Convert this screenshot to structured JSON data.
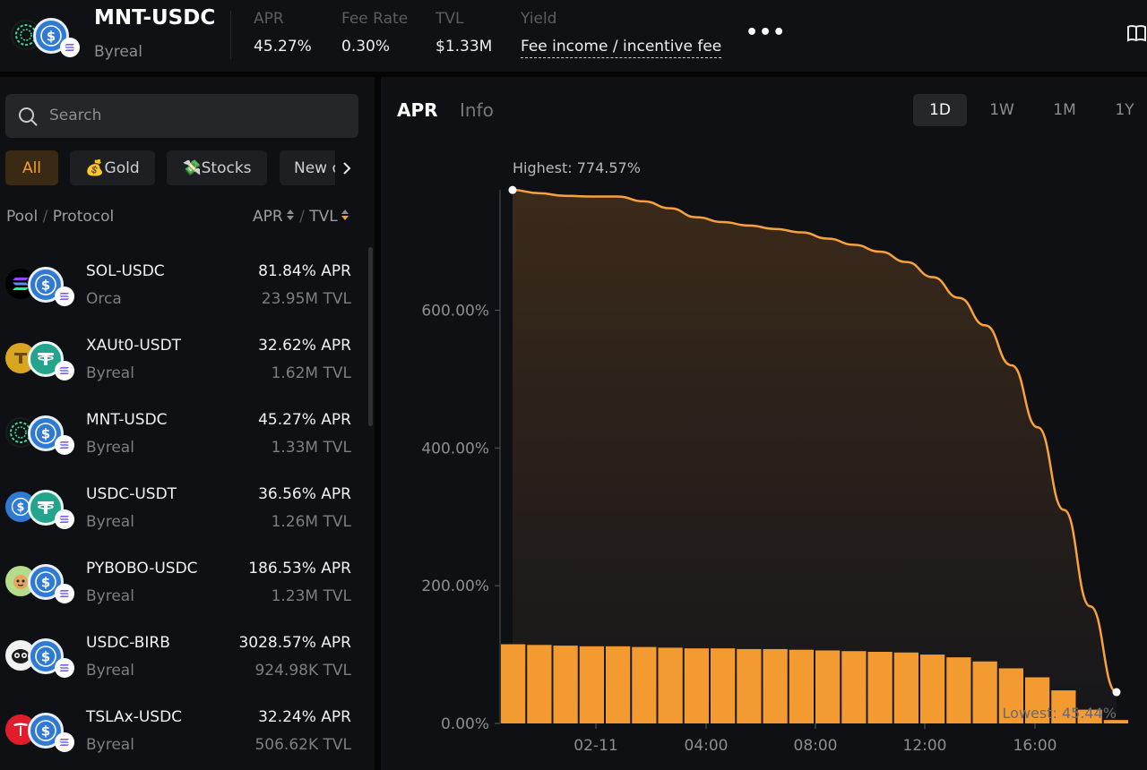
{
  "header": {
    "pair": "MNT-USDC",
    "protocol": "Byreal",
    "stats": [
      {
        "label": "APR",
        "value": "45.27%"
      },
      {
        "label": "Fee Rate",
        "value": "0.30%"
      },
      {
        "label": "TVL",
        "value": "$1.33M"
      },
      {
        "label": "Yield",
        "value": "Fee income / incentive fee"
      }
    ],
    "more": "•••",
    "icons": {
      "pair": [
        "mnt-icon",
        "usdc-icon",
        "solana-icon"
      ],
      "right": "book-icon",
      "more": "more-icon"
    }
  },
  "sidebar": {
    "search_placeholder": "Search",
    "filters": [
      {
        "label": "All",
        "active": true
      },
      {
        "label": "💰Gold",
        "active": false
      },
      {
        "label": "💸Stocks",
        "active": false
      },
      {
        "label": "New c",
        "active": false
      }
    ],
    "columns": {
      "pool": "Pool",
      "sep1": "/",
      "protocol": "Protocol",
      "apr": "APR",
      "sep2": "/",
      "tvl": "TVL"
    },
    "pools": [
      {
        "name": "SOL-USDC",
        "protocol": "Orca",
        "apr": "81.84% APR",
        "tvl": "23.95M TVL"
      },
      {
        "name": "XAUt0-USDT",
        "protocol": "Byreal",
        "apr": "32.62% APR",
        "tvl": "1.62M TVL"
      },
      {
        "name": "MNT-USDC",
        "protocol": "Byreal",
        "apr": "45.27% APR",
        "tvl": "1.33M TVL"
      },
      {
        "name": "USDC-USDT",
        "protocol": "Byreal",
        "apr": "36.56% APR",
        "tvl": "1.26M TVL"
      },
      {
        "name": "PYBOBO-USDC",
        "protocol": "Byreal",
        "apr": "186.53% APR",
        "tvl": "1.23M TVL"
      },
      {
        "name": "USDC-BIRB",
        "protocol": "Byreal",
        "apr": "3028.57% APR",
        "tvl": "924.98K TVL"
      },
      {
        "name": "TSLAx-USDC",
        "protocol": "Byreal",
        "apr": "32.24% APR",
        "tvl": "506.62K TVL"
      }
    ]
  },
  "main": {
    "tabs": [
      {
        "label": "APR",
        "active": true
      },
      {
        "label": "Info",
        "active": false
      }
    ],
    "ranges": [
      {
        "label": "1D",
        "active": true
      },
      {
        "label": "1W",
        "active": false
      },
      {
        "label": "1M",
        "active": false
      },
      {
        "label": "1Y",
        "active": false
      }
    ]
  },
  "colors": {
    "accent": "#f5a031",
    "line": "#f7a23b",
    "bar": "#f39a31"
  },
  "chart_data": {
    "type": "area",
    "title": "",
    "xlabel": "",
    "ylabel": "",
    "x_ticks": [
      "02-11",
      "04:00",
      "08:00",
      "12:00",
      "16:00"
    ],
    "y_ticks": [
      "0.00%",
      "200.00%",
      "400.00%",
      "600.00%"
    ],
    "ylim": [
      0,
      780
    ],
    "annotations": {
      "highest": "Highest: 774.57%",
      "lowest": "Lowest: 45.44%"
    },
    "series": [
      {
        "type": "line",
        "values": [
          774.57,
          770,
          766,
          765,
          765,
          758,
          748,
          735,
          728,
          723,
          718,
          713,
          704,
          695,
          685,
          670,
          648,
          618,
          578,
          520,
          430,
          310,
          170,
          45.44
        ]
      },
      {
        "type": "bar",
        "values": [
          115,
          114,
          113,
          112,
          112,
          111,
          110,
          109,
          109,
          108,
          108,
          107,
          106,
          105,
          104,
          103,
          100,
          96,
          90,
          80,
          67,
          48,
          20,
          5
        ]
      }
    ]
  }
}
